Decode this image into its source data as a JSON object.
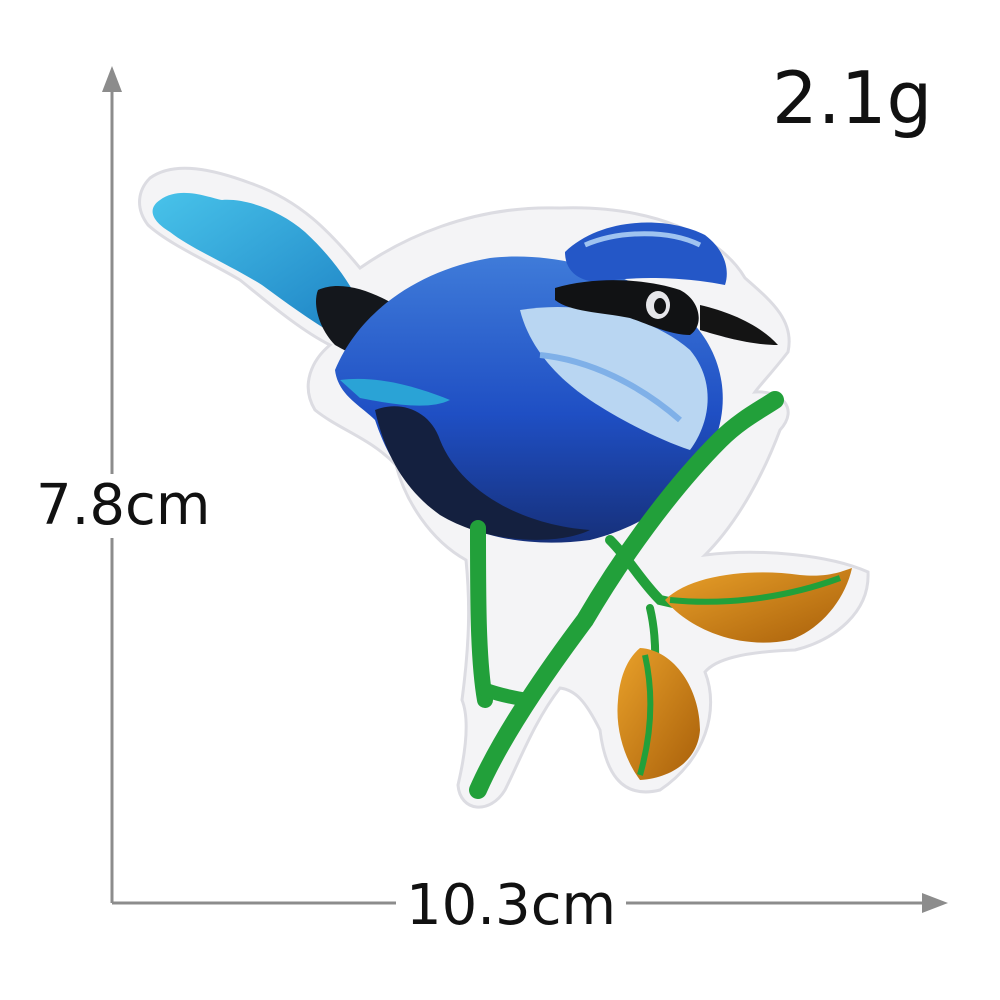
{
  "product": {
    "subject": "bird-on-branch-embroidered-patch",
    "weight": "2.1g",
    "height": "7.8cm",
    "width": "10.3cm"
  },
  "colors": {
    "felt_backing": "#f4f4f6",
    "felt_outline": "#dcdce2",
    "tail_teal": "#2aa3d6",
    "tail_dark": "#14171c",
    "body_blue": "#1f4fc4",
    "body_mid": "#3f7bd9",
    "chest_light": "#b9d6f2",
    "head_cap": "#2457c7",
    "eye_mask": "#111214",
    "beak": "#141414",
    "branch_green": "#22a03a",
    "leaf_orange": "#d88a16",
    "leaf_dark": "#a85f0a",
    "dimension_line": "#8c8c8c"
  }
}
